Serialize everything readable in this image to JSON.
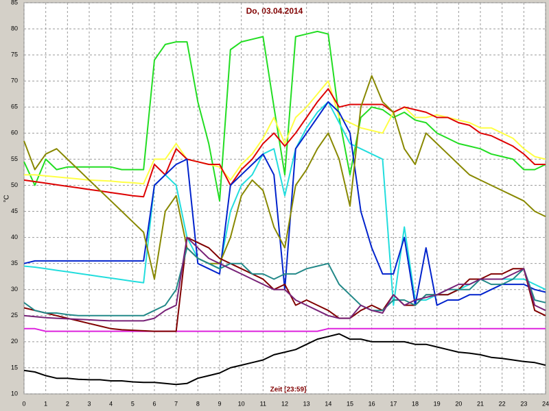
{
  "chart_data": {
    "type": "line",
    "title": "Do, 03.04.2014",
    "y_label": "°C",
    "x_label": "Zeit [23:59]",
    "x": [
      0,
      0.5,
      1,
      1.5,
      2,
      2.5,
      3,
      3.5,
      4,
      4.5,
      5,
      5.5,
      6,
      6.5,
      7,
      7.5,
      8,
      8.5,
      9,
      9.5,
      10,
      10.5,
      11,
      11.5,
      12,
      12.5,
      13,
      13.5,
      14,
      14.5,
      15,
      15.5,
      16,
      16.5,
      17,
      17.5,
      18,
      18.5,
      19,
      19.5,
      20,
      20.5,
      21,
      21.5,
      22,
      22.5,
      23,
      23.5,
      24
    ],
    "xlim": [
      0,
      24
    ],
    "xticks": [
      0,
      1,
      2,
      3,
      4,
      5,
      6,
      7,
      8,
      9,
      10,
      11,
      12,
      13,
      14,
      15,
      16,
      17,
      18,
      19,
      20,
      21,
      22,
      23,
      24
    ],
    "ylim": [
      10,
      85
    ],
    "yticks": [
      10,
      15,
      20,
      25,
      30,
      35,
      40,
      45,
      50,
      55,
      60,
      65,
      70,
      75,
      80,
      85
    ],
    "grid": true,
    "series": [
      {
        "color": "#22dd22",
        "values": [
          54.5,
          50,
          55,
          53,
          53.5,
          53.5,
          53.5,
          53.5,
          53.5,
          53,
          53,
          53,
          74,
          77,
          77.5,
          77.5,
          66,
          58,
          47,
          76,
          77.5,
          78,
          78.5,
          65,
          52,
          78.5,
          79,
          79.5,
          79,
          63,
          52,
          63,
          65,
          64.5,
          63,
          64,
          62.5,
          62,
          60,
          59,
          58,
          57.5,
          57,
          56,
          55.5,
          55,
          53,
          53,
          54
        ]
      },
      {
        "color": "#ffff44",
        "values": [
          52,
          52,
          51.8,
          51.6,
          51.4,
          51.2,
          51,
          50.9,
          50.8,
          50.6,
          50.5,
          50.3,
          55,
          55,
          58,
          55,
          54.5,
          54,
          53.5,
          51,
          54,
          56,
          59,
          63,
          58,
          63,
          65,
          67.5,
          70,
          63,
          62,
          61,
          60.5,
          60,
          64,
          65,
          63,
          63,
          63.5,
          63,
          62.5,
          62,
          61,
          61,
          60,
          59,
          57,
          55.5,
          55
        ]
      },
      {
        "color": "#dd0000",
        "values": [
          51,
          50.7,
          50.4,
          50.1,
          49.8,
          49.5,
          49.2,
          48.9,
          48.6,
          48.3,
          48,
          47.8,
          54,
          52,
          57,
          55,
          54.5,
          54,
          54,
          50,
          53,
          55,
          58,
          60,
          57.5,
          60,
          63,
          66,
          68.5,
          65,
          65.5,
          65.5,
          65.5,
          65.5,
          64,
          65,
          64.5,
          64,
          63,
          63,
          62,
          61.5,
          60,
          59.5,
          58.5,
          57.5,
          56,
          54,
          54
        ]
      },
      {
        "color": "#22dddd",
        "values": [
          34.5,
          34.3,
          34,
          33.7,
          33.4,
          33.1,
          32.8,
          32.5,
          32.2,
          31.9,
          31.6,
          31.3,
          50,
          52,
          50,
          40,
          36,
          35,
          34,
          45,
          50,
          52,
          56,
          57,
          48,
          57,
          61,
          64,
          66,
          62,
          58,
          57,
          56,
          55,
          27,
          42,
          28,
          28,
          29,
          29,
          30,
          31,
          32,
          32,
          32,
          32,
          32,
          31,
          30
        ]
      },
      {
        "color": "#0022cc",
        "values": [
          35,
          35.5,
          35.5,
          35.5,
          35.5,
          35.5,
          35.5,
          35.5,
          35.5,
          35.5,
          35.5,
          35.5,
          50,
          52,
          54,
          55,
          35,
          34,
          33,
          50,
          52,
          54,
          56,
          52,
          30,
          57,
          60,
          63,
          66,
          64,
          60,
          45,
          38,
          33,
          33,
          40,
          27,
          38,
          27,
          28,
          28,
          29,
          29,
          30,
          31,
          31,
          31,
          30,
          29.5
        ]
      },
      {
        "color": "#888800",
        "values": [
          58.5,
          53,
          56,
          57,
          55,
          53,
          51,
          49,
          47,
          45,
          43,
          41,
          32,
          45,
          48,
          38,
          36,
          35,
          35,
          40,
          48,
          51,
          49,
          42,
          38,
          50,
          53,
          57,
          60,
          55,
          46,
          65,
          71,
          66,
          64,
          57,
          54,
          60,
          58,
          56,
          54,
          52,
          51,
          50,
          49,
          48,
          47,
          45,
          44
        ]
      },
      {
        "color": "#dd22dd",
        "values": [
          22.5,
          22.5,
          22,
          22,
          22,
          22,
          22,
          22,
          22,
          22,
          22,
          22,
          22,
          22,
          22,
          22,
          22,
          22,
          22,
          22,
          22,
          22,
          22,
          22,
          22,
          22,
          22,
          22,
          22.5,
          22.5,
          22.5,
          22.5,
          22.5,
          22.5,
          22.5,
          22.5,
          22.5,
          22.5,
          22.5,
          22.5,
          22.5,
          22.5,
          22.5,
          22.5,
          22.5,
          22.5,
          22.5,
          22.5,
          22.5
        ]
      },
      {
        "color": "#000000",
        "values": [
          14.5,
          14.2,
          13.5,
          13,
          13,
          12.8,
          12.7,
          12.7,
          12.5,
          12.5,
          12.3,
          12.2,
          12.2,
          12,
          11.8,
          12,
          13,
          13.5,
          14,
          15,
          15.5,
          16,
          16.5,
          17.5,
          18,
          18.5,
          19.5,
          20.5,
          21,
          21.5,
          20.5,
          20.5,
          20,
          20,
          20,
          20,
          19.5,
          19.5,
          19,
          18.5,
          18,
          17.8,
          17.5,
          17,
          16.8,
          16.5,
          16.2,
          16,
          15.5
        ]
      },
      {
        "color": "#800000",
        "values": [
          26.5,
          26,
          25.5,
          25,
          24.5,
          24,
          23.5,
          23,
          22.5,
          22.3,
          22.2,
          22.1,
          22,
          22,
          22,
          40,
          39,
          38,
          36,
          35,
          34,
          33,
          32,
          30,
          31,
          27,
          28,
          27,
          26,
          24.5,
          24.5,
          26,
          27,
          26,
          29,
          27,
          27,
          29,
          29,
          29,
          30,
          32,
          32,
          33,
          33,
          34,
          34,
          26,
          25
        ]
      },
      {
        "color": "#228888",
        "values": [
          27.5,
          26,
          25.5,
          25.5,
          25.2,
          25,
          25,
          25,
          25,
          25,
          25,
          25,
          26,
          27,
          30,
          38,
          36,
          35,
          34,
          35,
          35,
          33,
          33,
          32,
          33,
          33,
          34,
          34.5,
          35,
          31,
          29,
          27,
          26,
          26,
          28,
          28,
          27,
          29,
          29,
          30,
          30,
          30,
          32,
          31,
          31,
          32,
          34,
          28,
          27.5
        ]
      },
      {
        "color": "#772277",
        "values": [
          25,
          24.8,
          24.6,
          24.5,
          24.4,
          24.3,
          24.2,
          24.1,
          24,
          24,
          24,
          24,
          24.5,
          26,
          27,
          40,
          38,
          36,
          35,
          34,
          33,
          32,
          31,
          30,
          30,
          28,
          27,
          26,
          25,
          24.5,
          24.5,
          27,
          26,
          25.5,
          29,
          27,
          28,
          28.5,
          29,
          30,
          31,
          31,
          32,
          32,
          32,
          33,
          34,
          27,
          26
        ]
      }
    ]
  }
}
